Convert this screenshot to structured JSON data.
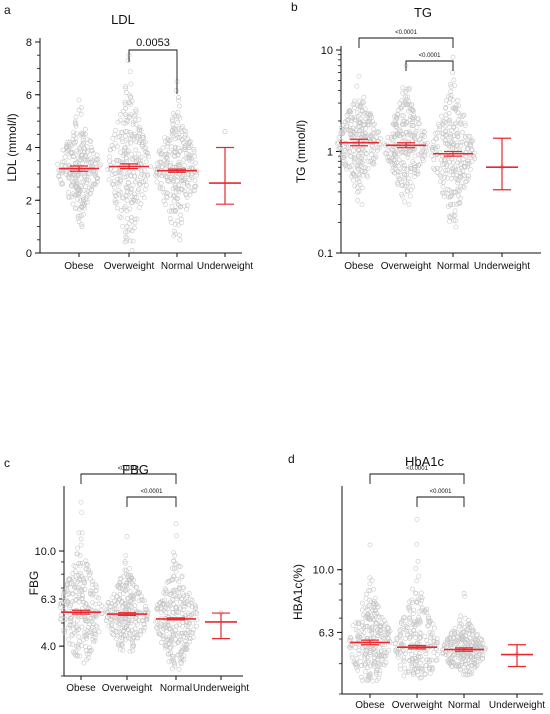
{
  "chart_data": [
    {
      "type": "scatter",
      "panel": "a",
      "title": "LDL",
      "ylabel": "LDL (mmol/l)",
      "xlabel": "",
      "categories": [
        "Obese",
        "Overweight",
        "Normal",
        "Underweight"
      ],
      "y_scale": "linear",
      "ylim": [
        0,
        8
      ],
      "yticks": [
        0,
        2,
        4,
        6,
        8
      ],
      "ytick_labels": [
        "0",
        "2",
        "4",
        "6",
        "8"
      ],
      "summary": [
        {
          "category": "Obese",
          "mean": 3.2,
          "ci_low": 3.1,
          "ci_high": 3.3
        },
        {
          "category": "Overweight",
          "mean": 3.28,
          "ci_low": 3.2,
          "ci_high": 3.38
        },
        {
          "category": "Normal",
          "mean": 3.12,
          "ci_low": 3.06,
          "ci_high": 3.18
        },
        {
          "category": "Underweight",
          "mean": 2.65,
          "ci_low": 1.85,
          "ci_high": 4.0
        }
      ],
      "point_ranges": [
        {
          "category": "Obese",
          "min": 1.0,
          "max": 5.8
        },
        {
          "category": "Overweight",
          "min": 0.1,
          "max": 7.5
        },
        {
          "category": "Normal",
          "min": 0.5,
          "max": 6.5
        },
        {
          "category": "Underweight",
          "min": 4.6,
          "max": 4.6
        }
      ],
      "comparisons": [
        {
          "from": "Overweight",
          "to": "Normal",
          "label": "0.0053"
        }
      ],
      "colors": {
        "points": "#c8c8c8",
        "summary": "#e8282e",
        "underweight_summary": "#e8282e"
      }
    },
    {
      "type": "scatter",
      "panel": "b",
      "title": "TG",
      "ylabel": "TG (mmol/l)",
      "xlabel": "",
      "categories": [
        "Obese",
        "Overweight",
        "Normal",
        "Underweight"
      ],
      "y_scale": "log",
      "ylim": [
        0.1,
        10
      ],
      "yticks": [
        0.1,
        1,
        10
      ],
      "ytick_labels": [
        "0.1",
        "1",
        "10"
      ],
      "summary": [
        {
          "category": "Obese",
          "mean": 1.22,
          "ci_low": 1.14,
          "ci_high": 1.32
        },
        {
          "category": "Overweight",
          "mean": 1.15,
          "ci_low": 1.09,
          "ci_high": 1.22
        },
        {
          "category": "Normal",
          "mean": 0.95,
          "ci_low": 0.9,
          "ci_high": 1.0
        },
        {
          "category": "Underweight",
          "mean": 0.7,
          "ci_low": 0.42,
          "ci_high": 1.35
        }
      ],
      "point_ranges": [
        {
          "category": "Obese",
          "min": 0.3,
          "max": 5.5
        },
        {
          "category": "Overweight",
          "min": 0.3,
          "max": 7.0
        },
        {
          "category": "Normal",
          "min": 0.18,
          "max": 8.5
        },
        {
          "category": "Underweight",
          "min": 0.7,
          "max": 0.7
        }
      ],
      "comparisons": [
        {
          "from": "Obese",
          "to": "Normal",
          "label": "<0.0001"
        },
        {
          "from": "Overweight",
          "to": "Normal",
          "label": "<0.0001"
        }
      ],
      "colors": {
        "points": "#c8c8c8",
        "summary": "#e8282e",
        "underweight_summary": "#e8282e"
      }
    },
    {
      "type": "scatter",
      "panel": "c",
      "title": "FBG",
      "ylabel": "FBG",
      "xlabel": "",
      "categories": [
        "Obese",
        "Overweight",
        "Normal",
        "Underweight"
      ],
      "y_scale": "log",
      "ylim": [
        3.0,
        18.0
      ],
      "yticks": [
        4.0,
        6.3,
        10.0
      ],
      "ytick_labels": [
        "4.0",
        "6.3",
        "10.0"
      ],
      "summary": [
        {
          "category": "Obese",
          "mean": 5.55,
          "ci_low": 5.45,
          "ci_high": 5.65
        },
        {
          "category": "Overweight",
          "mean": 5.45,
          "ci_low": 5.38,
          "ci_high": 5.52
        },
        {
          "category": "Normal",
          "mean": 5.2,
          "ci_low": 5.15,
          "ci_high": 5.25
        },
        {
          "category": "Underweight",
          "mean": 5.05,
          "ci_low": 4.3,
          "ci_high": 5.5
        }
      ],
      "point_ranges": [
        {
          "category": "Obese",
          "min": 3.4,
          "max": 16.0
        },
        {
          "category": "Overweight",
          "min": 3.8,
          "max": 11.5
        },
        {
          "category": "Normal",
          "min": 3.2,
          "max": 13.0
        },
        {
          "category": "Underweight",
          "min": 5.5,
          "max": 5.5
        }
      ],
      "comparisons": [
        {
          "from": "Obese",
          "to": "Normal",
          "label": "<0.0001"
        },
        {
          "from": "Overweight",
          "to": "Normal",
          "label": "<0.0001"
        }
      ],
      "colors": {
        "points": "#c8c8c8",
        "summary": "#e8282e",
        "underweight_summary": "#e8282e"
      }
    },
    {
      "type": "scatter",
      "panel": "d",
      "title": "HbA1c",
      "ylabel": "HBA1c(%)",
      "xlabel": "",
      "categories": [
        "Obese",
        "Overweight",
        "Normal",
        "Underweight"
      ],
      "y_scale": "log",
      "ylim": [
        4.0,
        18.0
      ],
      "yticks": [
        6.3,
        10.0
      ],
      "ytick_labels": [
        "6.3",
        "10.0"
      ],
      "summary": [
        {
          "category": "Obese",
          "mean": 5.85,
          "ci_low": 5.75,
          "ci_high": 5.95
        },
        {
          "category": "Overweight",
          "mean": 5.65,
          "ci_low": 5.58,
          "ci_high": 5.72
        },
        {
          "category": "Normal",
          "mean": 5.55,
          "ci_low": 5.48,
          "ci_high": 5.62
        },
        {
          "category": "Underweight",
          "mean": 5.35,
          "ci_low": 4.9,
          "ci_high": 5.75
        }
      ],
      "point_ranges": [
        {
          "category": "Obese",
          "min": 4.4,
          "max": 12.0
        },
        {
          "category": "Overweight",
          "min": 4.5,
          "max": 14.5
        },
        {
          "category": "Normal",
          "min": 4.6,
          "max": 8.4
        },
        {
          "category": "Underweight",
          "min": 5.35,
          "max": 5.35
        }
      ],
      "comparisons": [
        {
          "from": "Obese",
          "to": "Normal",
          "label": "<0.0001"
        },
        {
          "from": "Overweight",
          "to": "Normal",
          "label": "<0.0001"
        }
      ],
      "colors": {
        "points": "#c8c8c8",
        "summary": "#e8282e",
        "underweight_summary": "#e8282e"
      }
    }
  ]
}
